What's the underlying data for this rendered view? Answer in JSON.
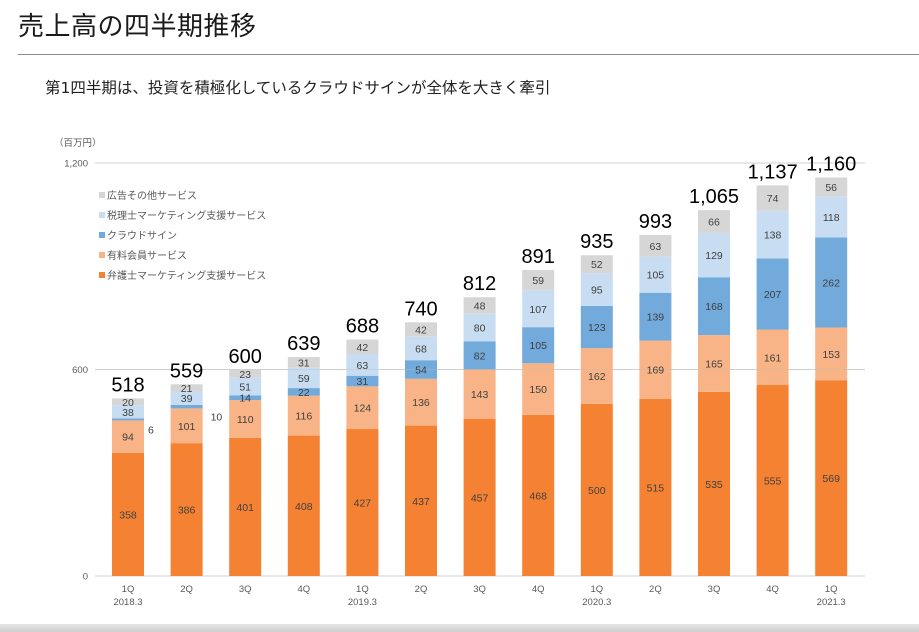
{
  "header": {
    "title": "売上高の四半期推移",
    "subtitle": "第1四半期は、投資を積極化しているクラウドサインが全体を大きく牽引"
  },
  "chart_data": {
    "type": "bar",
    "stacked": true,
    "unit_label": "（百万円）",
    "ylim": [
      0,
      1200
    ],
    "yticks": [
      {
        "value": 0,
        "label": "0"
      },
      {
        "value": 600,
        "label": "600"
      },
      {
        "value": 1200,
        "label": "1,200"
      }
    ],
    "grid": true,
    "legend_position": "top-left",
    "categories": [
      {
        "q": "1Q",
        "fy": "2018.3"
      },
      {
        "q": "2Q",
        "fy": ""
      },
      {
        "q": "3Q",
        "fy": ""
      },
      {
        "q": "4Q",
        "fy": ""
      },
      {
        "q": "1Q",
        "fy": "2019.3"
      },
      {
        "q": "2Q",
        "fy": ""
      },
      {
        "q": "3Q",
        "fy": ""
      },
      {
        "q": "4Q",
        "fy": ""
      },
      {
        "q": "1Q",
        "fy": "2020.3"
      },
      {
        "q": "2Q",
        "fy": ""
      },
      {
        "q": "3Q",
        "fy": ""
      },
      {
        "q": "4Q",
        "fy": ""
      },
      {
        "q": "1Q",
        "fy": "2021.3"
      }
    ],
    "series": [
      {
        "name": "弁護士マーケティング支援サービス",
        "color": "#f58233",
        "values": [
          358,
          386,
          401,
          408,
          427,
          437,
          457,
          468,
          500,
          515,
          535,
          555,
          569
        ]
      },
      {
        "name": "有料会員サービス",
        "color": "#f8b486",
        "values": [
          94,
          101,
          110,
          116,
          124,
          136,
          143,
          150,
          162,
          169,
          165,
          161,
          153
        ]
      },
      {
        "name": "クラウドサイン",
        "color": "#72aadb",
        "values": [
          6,
          10,
          14,
          22,
          31,
          54,
          82,
          105,
          123,
          139,
          168,
          207,
          262
        ]
      },
      {
        "name": "税理士マーケティング支援サービス",
        "color": "#c8ddf1",
        "values": [
          38,
          39,
          51,
          59,
          63,
          68,
          80,
          107,
          95,
          105,
          129,
          138,
          118
        ]
      },
      {
        "name": "広告その他サービス",
        "color": "#d6d6d6",
        "values": [
          20,
          21,
          23,
          31,
          42,
          42,
          48,
          59,
          52,
          63,
          66,
          74,
          56
        ]
      }
    ],
    "totals": [
      "518",
      "559",
      "600",
      "639",
      "688",
      "740",
      "812",
      "891",
      "935",
      "993",
      "1,065",
      "1,137",
      "1,160"
    ]
  }
}
